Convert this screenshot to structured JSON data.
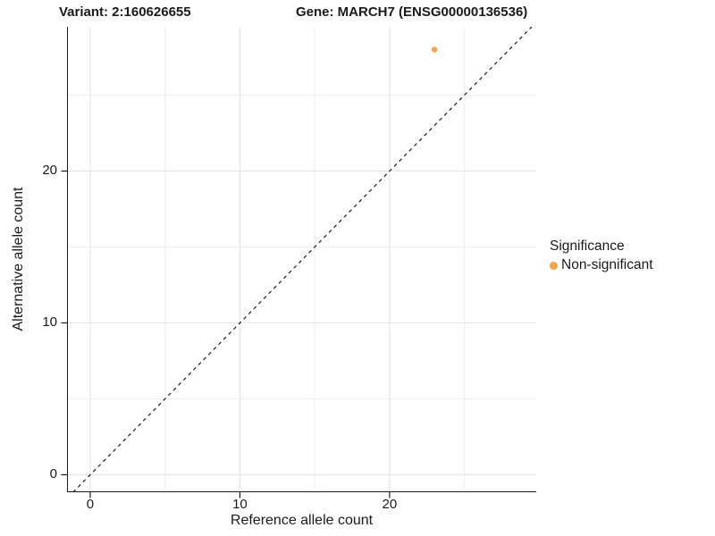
{
  "figure": {
    "background": "#ffffff",
    "titles": {
      "variant": "Variant: 2:160626655",
      "gene": "Gene: MARCH7 (ENSG00000136536)"
    }
  },
  "axes": {
    "x": {
      "label": "Reference allele count"
    },
    "y": {
      "label": "Alternative allele count"
    }
  },
  "legend": {
    "title": "Significance",
    "items": [
      {
        "label": "Non-significant",
        "color": "#F9A33C"
      }
    ]
  },
  "chart_data": {
    "type": "scatter",
    "title": "Variant: 2:160626655   Gene: MARCH7 (ENSG00000136536)",
    "xlabel": "Reference allele count",
    "ylabel": "Alternative allele count",
    "xlim": [
      -1.55,
      29.8
    ],
    "ylim": [
      -1.15,
      29.5
    ],
    "x_breaks": [
      0,
      10,
      20
    ],
    "y_breaks": [
      0,
      10,
      20
    ],
    "x_minor_breaks": [
      5,
      15,
      25
    ],
    "y_minor_breaks": [
      5,
      15,
      25
    ],
    "grid": true,
    "legend_position": "right",
    "series": [
      {
        "name": "Non-significant",
        "color": "#F9A33C",
        "points": [
          {
            "x": 23,
            "y": 28
          }
        ]
      }
    ],
    "reference_line": {
      "style": "dashed",
      "equation": "y = x",
      "color": "#1a1a1a"
    },
    "colors": {
      "grid_major": "#e4e4e4",
      "grid_minor": "#efefef",
      "axis": "#1a1a1a"
    }
  }
}
